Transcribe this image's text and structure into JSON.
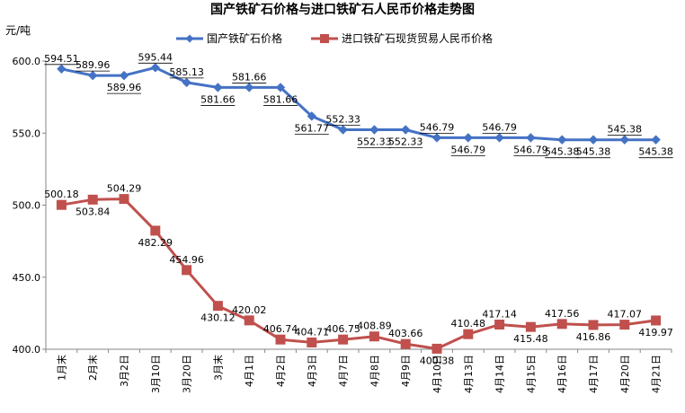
{
  "chart_data": {
    "type": "line",
    "title": "国产铁矿石价格与进口铁矿石人民币价格走势图",
    "ylabel": "元/吨",
    "xlabel": "",
    "ylim": [
      400,
      600
    ],
    "yticks": [
      "400.0",
      "450.0",
      "500.0",
      "550.0",
      "600.0"
    ],
    "grid": false,
    "legend_position": "top-right",
    "categories": [
      "1月末",
      "2月末",
      "3月2日",
      "3月10日",
      "3月20日",
      "3月末",
      "4月1日",
      "4月2日",
      "4月3日",
      "4月7日",
      "4月8日",
      "4月9日",
      "4月10日",
      "4月13日",
      "4月14日",
      "4月15日",
      "4月16日",
      "4月17日",
      "4月20日",
      "4月21日"
    ],
    "series": [
      {
        "name": "国产铁矿石价格",
        "color": "#4472C4",
        "marker": "diamond",
        "values": [
          594.51,
          589.96,
          589.96,
          595.44,
          585.13,
          581.66,
          581.66,
          581.66,
          561.77,
          552.33,
          552.33,
          552.33,
          546.79,
          546.79,
          546.79,
          546.79,
          545.38,
          545.38,
          545.38,
          545.38
        ],
        "labels": [
          "594.51",
          "589.96",
          "589.96",
          "595.44",
          "585.13",
          "581.66",
          "581.66",
          "581.66",
          "561.77",
          "552.33",
          "552.33",
          "552.33",
          "546.79",
          "546.79",
          "546.79",
          "546.79",
          "545.38",
          "545.38",
          "545.38",
          "545.38"
        ]
      },
      {
        "name": "进口铁矿石现货贸易人民币价格",
        "color": "#C0504D",
        "marker": "square",
        "values": [
          500.18,
          503.84,
          504.29,
          482.29,
          454.96,
          430.12,
          420.02,
          406.74,
          404.71,
          406.75,
          408.89,
          403.66,
          400.38,
          410.48,
          417.14,
          415.48,
          417.56,
          416.86,
          417.07,
          419.97
        ],
        "labels": [
          "500.18",
          "503.84",
          "504.29",
          "482.29",
          "454.96",
          "430.12",
          "420.02",
          "406.74",
          "404.71",
          "406.75",
          "408.89",
          "403.66",
          "400.38",
          "410.48",
          "417.14",
          "415.48",
          "417.56",
          "416.86",
          "417.07",
          "419.97"
        ]
      }
    ]
  }
}
